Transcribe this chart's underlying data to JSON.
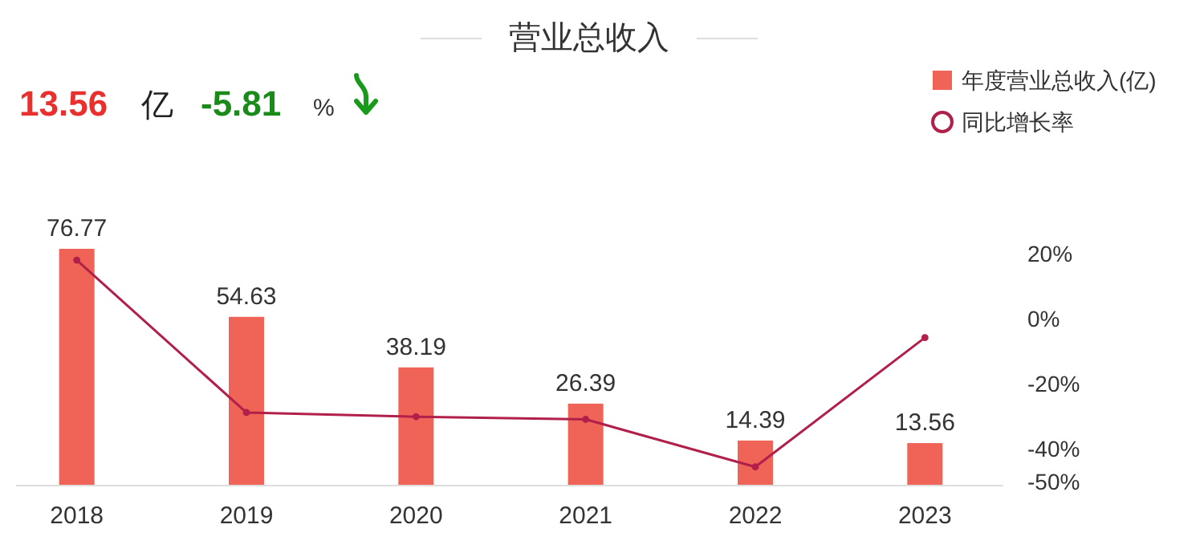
{
  "chart_data": {
    "type": "bar",
    "title": "营业总收入",
    "annotations": [
      "13.56",
      "亿",
      "-5.81",
      "%"
    ],
    "categories": [
      "2018",
      "2019",
      "2020",
      "2021",
      "2022",
      "2023"
    ],
    "series": [
      {
        "name": "年度营业总收入(亿)",
        "color": "#ef6456",
        "values": [
          76.77,
          54.63,
          38.19,
          26.39,
          14.39,
          13.56
        ],
        "value_labels": [
          "76.77",
          "54.63",
          "38.19",
          "26.39",
          "14.39",
          "13.56"
        ]
      },
      {
        "name": "同比增长率",
        "type": "line",
        "axis": "y2",
        "color": "#b0204a",
        "marker": "circle",
        "values": [
          18,
          -28.8,
          -30.1,
          -30.9,
          -45.5,
          -5.8
        ]
      }
    ],
    "y2lim": [
      -50,
      20
    ],
    "y2ticks": [
      {
        "value": 20,
        "label": "20%"
      },
      {
        "value": 0,
        "label": "0%"
      },
      {
        "value": -20,
        "label": "-20%"
      },
      {
        "value": -40,
        "label": "-40%"
      },
      {
        "value": -50,
        "label": "-50%"
      }
    ],
    "legend": "top right",
    "grid": false
  }
}
